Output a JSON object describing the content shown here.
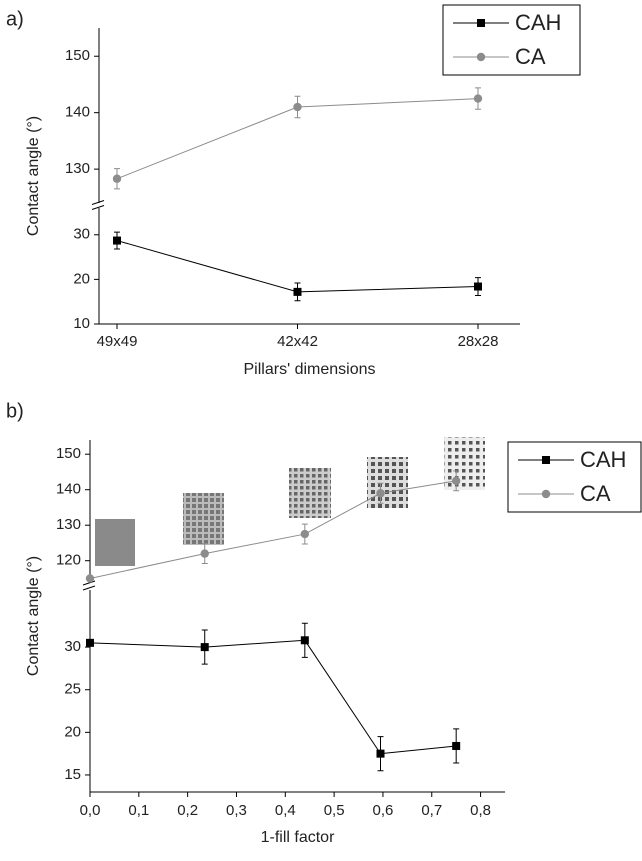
{
  "chart_data": [
    {
      "type": "line",
      "label": "a)",
      "x_label": "Pillars' dimensions",
      "y_label": "Contact angle (°)",
      "categories": [
        "49x49",
        "42x42",
        "28x28"
      ],
      "y_segments": [
        {
          "ylim": [
            10,
            36
          ],
          "yticks": [
            10,
            20,
            30
          ]
        },
        {
          "ylim": [
            124,
            155
          ],
          "yticks": [
            130,
            140,
            150
          ]
        }
      ],
      "legend": "upper right",
      "series": [
        {
          "name": "CAH",
          "color": "#000000",
          "marker": "square",
          "values": [
            28.7,
            17.2,
            18.4
          ],
          "errors": [
            1.9,
            2.0,
            2.0
          ]
        },
        {
          "name": "CA",
          "color": "#8c8c8c",
          "marker": "circle",
          "values": [
            128.3,
            141.0,
            142.5
          ],
          "errors": [
            1.8,
            1.9,
            1.9
          ]
        }
      ]
    },
    {
      "type": "line",
      "label": "b)",
      "x_label": "1-fill factor",
      "y_label": "Contact angle (°)",
      "x": [
        0,
        0.235,
        0.44,
        0.595,
        0.75
      ],
      "xlim": [
        0,
        0.85
      ],
      "xticks": [
        {
          "value": 0,
          "label": "0,0"
        },
        {
          "value": 0.1,
          "label": "0,1"
        },
        {
          "value": 0.2,
          "label": "0,2"
        },
        {
          "value": 0.3,
          "label": "0,3"
        },
        {
          "value": 0.4,
          "label": "0,4"
        },
        {
          "value": 0.5,
          "label": "0,5"
        },
        {
          "value": 0.6,
          "label": "0,6"
        },
        {
          "value": 0.7,
          "label": "0,7"
        },
        {
          "value": 0.8,
          "label": "0,8"
        }
      ],
      "y_segments": [
        {
          "ylim": [
            13,
            36.7
          ],
          "yticks": [
            15,
            20,
            25,
            30
          ]
        },
        {
          "ylim": [
            114,
            154
          ],
          "yticks": [
            120,
            130,
            140,
            150
          ]
        }
      ],
      "legend": "upper right",
      "series": [
        {
          "name": "CAH",
          "color": "#000000",
          "marker": "square",
          "values": [
            30.5,
            30.0,
            30.8,
            17.5,
            18.4
          ],
          "errors": [
            0,
            2.0,
            2.0,
            2.0,
            2.0
          ]
        },
        {
          "name": "CA",
          "color": "#8c8c8c",
          "marker": "circle",
          "values": [
            115,
            122,
            127.5,
            139,
            142.5
          ],
          "errors": [
            0,
            2.8,
            2.8,
            2.8,
            2.8
          ]
        }
      ]
    }
  ]
}
